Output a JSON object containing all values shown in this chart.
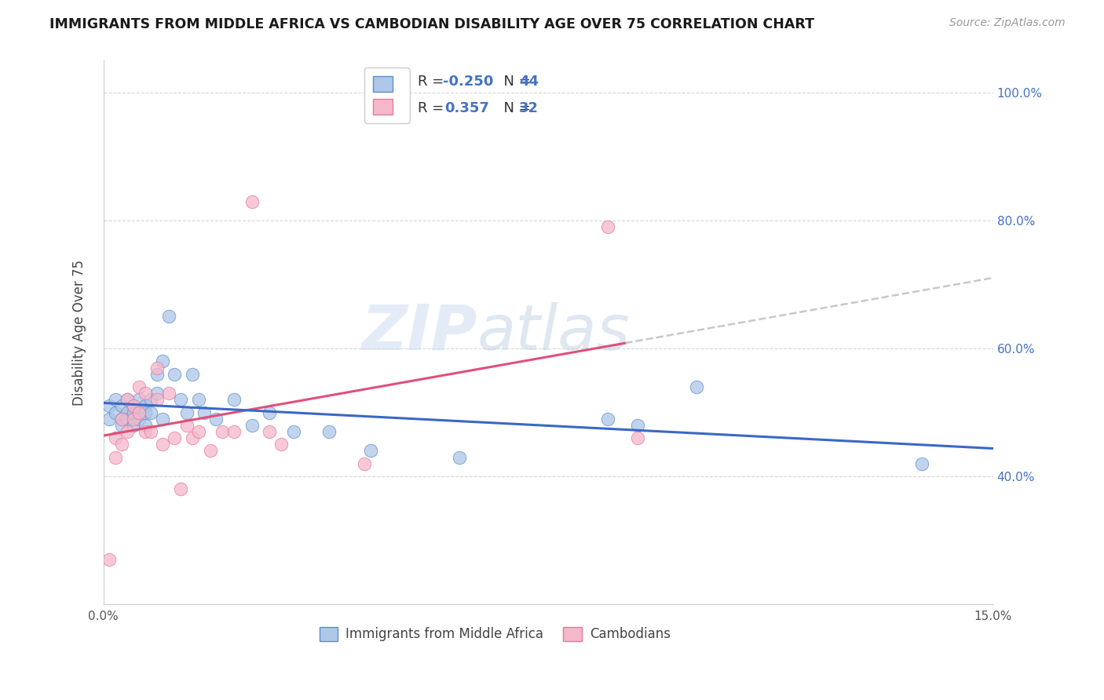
{
  "title": "IMMIGRANTS FROM MIDDLE AFRICA VS CAMBODIAN DISABILITY AGE OVER 75 CORRELATION CHART",
  "source": "Source: ZipAtlas.com",
  "ylabel": "Disability Age Over 75",
  "x_min": 0.0,
  "x_max": 0.15,
  "x_ticks": [
    0.0,
    0.03,
    0.06,
    0.09,
    0.12,
    0.15
  ],
  "x_ticklabels": [
    "0.0%",
    "",
    "",
    "",
    "",
    "15.0%"
  ],
  "y_min": 0.2,
  "y_max": 1.05,
  "y_ticks": [
    0.4,
    0.6,
    0.8,
    1.0
  ],
  "y_ticklabels": [
    "40.0%",
    "60.0%",
    "80.0%",
    "100.0%"
  ],
  "blue_R": -0.25,
  "blue_N": 44,
  "pink_R": 0.357,
  "pink_N": 32,
  "legend_label_blue": "Immigrants from Middle Africa",
  "legend_label_pink": "Cambodians",
  "watermark_zip": "ZIP",
  "watermark_atlas": "atlas",
  "blue_scatter_x": [
    0.001,
    0.001,
    0.002,
    0.002,
    0.003,
    0.003,
    0.003,
    0.004,
    0.004,
    0.004,
    0.005,
    0.005,
    0.005,
    0.006,
    0.006,
    0.006,
    0.007,
    0.007,
    0.007,
    0.008,
    0.008,
    0.009,
    0.009,
    0.01,
    0.01,
    0.011,
    0.012,
    0.013,
    0.014,
    0.015,
    0.016,
    0.017,
    0.019,
    0.022,
    0.025,
    0.028,
    0.032,
    0.038,
    0.045,
    0.06,
    0.085,
    0.09,
    0.1,
    0.138
  ],
  "blue_scatter_y": [
    0.51,
    0.49,
    0.52,
    0.5,
    0.51,
    0.49,
    0.48,
    0.52,
    0.5,
    0.49,
    0.51,
    0.5,
    0.48,
    0.52,
    0.5,
    0.49,
    0.51,
    0.5,
    0.48,
    0.52,
    0.5,
    0.53,
    0.56,
    0.49,
    0.58,
    0.65,
    0.56,
    0.52,
    0.5,
    0.56,
    0.52,
    0.5,
    0.49,
    0.52,
    0.48,
    0.5,
    0.47,
    0.47,
    0.44,
    0.43,
    0.49,
    0.48,
    0.54,
    0.42
  ],
  "pink_scatter_x": [
    0.001,
    0.002,
    0.002,
    0.003,
    0.003,
    0.004,
    0.004,
    0.005,
    0.005,
    0.006,
    0.006,
    0.007,
    0.007,
    0.008,
    0.009,
    0.009,
    0.01,
    0.011,
    0.012,
    0.013,
    0.014,
    0.015,
    0.016,
    0.018,
    0.02,
    0.022,
    0.025,
    0.028,
    0.03,
    0.044,
    0.085,
    0.09
  ],
  "pink_scatter_y": [
    0.27,
    0.46,
    0.43,
    0.49,
    0.45,
    0.52,
    0.47,
    0.51,
    0.49,
    0.54,
    0.5,
    0.53,
    0.47,
    0.47,
    0.52,
    0.57,
    0.45,
    0.53,
    0.46,
    0.38,
    0.48,
    0.46,
    0.47,
    0.44,
    0.47,
    0.47,
    0.83,
    0.47,
    0.45,
    0.42,
    0.79,
    0.46
  ],
  "blue_color": "#aec6e8",
  "pink_color": "#f5b8cb",
  "blue_edge_color": "#5b8fce",
  "pink_edge_color": "#e8789a",
  "blue_line_color": "#3a68c4",
  "pink_line_color": "#e0507a",
  "dash_color": "#c8c8c8",
  "background_color": "#ffffff",
  "grid_color": "#d8d8d8",
  "label_color": "#4472c4"
}
